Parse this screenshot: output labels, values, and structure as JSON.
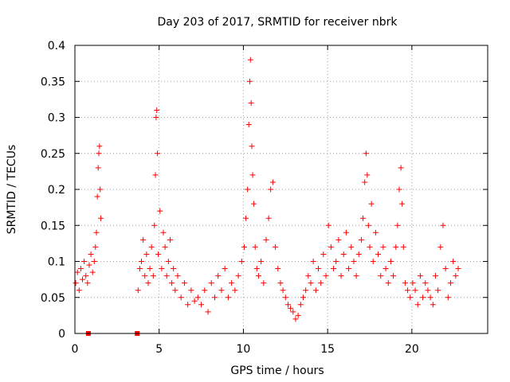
{
  "chart_data": {
    "type": "scatter",
    "title": "Day 203 of 2017, SRMTID for receiver nbrk",
    "xlabel": "GPS time / hours",
    "ylabel": "SRMTID / TECUs",
    "xlim": [
      0,
      24.5
    ],
    "ylim": [
      0,
      0.4
    ],
    "xticks": [
      0,
      5,
      10,
      15,
      20
    ],
    "xtick_labels": [
      "0",
      "5",
      "10",
      "15",
      "20"
    ],
    "yticks": [
      0,
      0.05,
      0.1,
      0.15,
      0.2,
      0.25,
      0.3,
      0.35,
      0.4
    ],
    "ytick_labels": [
      "0",
      "0.05",
      "0.1",
      "0.15",
      "0.2",
      "0.25",
      "0.3",
      "0.35",
      "0.4"
    ],
    "grid": true,
    "marker": "plus",
    "color": "#ff0000",
    "series": [
      {
        "name": "SRMTID",
        "x": [
          0.05,
          0.15,
          0.25,
          0.35,
          0.45,
          0.55,
          0.65,
          0.75,
          0.85,
          0.95,
          1.05,
          1.15,
          1.22,
          1.28,
          1.33,
          1.38,
          1.42,
          1.46,
          1.5,
          1.54,
          3.75,
          3.85,
          3.95,
          4.05,
          4.15,
          4.25,
          4.35,
          4.45,
          4.55,
          4.65,
          4.72,
          4.78,
          4.82,
          4.86,
          4.9,
          4.95,
          5.05,
          5.15,
          5.25,
          5.35,
          5.45,
          5.55,
          5.65,
          5.75,
          5.85,
          5.95,
          6.1,
          6.3,
          6.5,
          6.7,
          6.9,
          7.1,
          7.3,
          7.5,
          7.7,
          7.9,
          8.1,
          8.3,
          8.5,
          8.7,
          8.9,
          9.1,
          9.3,
          9.5,
          9.7,
          9.9,
          10.05,
          10.15,
          10.25,
          10.32,
          10.38,
          10.42,
          10.46,
          10.5,
          10.55,
          10.62,
          10.7,
          10.8,
          10.9,
          11.05,
          11.2,
          11.35,
          11.5,
          11.62,
          11.75,
          11.9,
          12.05,
          12.2,
          12.35,
          12.5,
          12.65,
          12.8,
          12.95,
          13.1,
          13.25,
          13.4,
          13.55,
          13.7,
          13.85,
          14.0,
          14.15,
          14.3,
          14.45,
          14.6,
          14.75,
          14.9,
          15.05,
          15.2,
          15.35,
          15.5,
          15.65,
          15.8,
          15.95,
          16.1,
          16.25,
          16.4,
          16.55,
          16.7,
          16.85,
          17.0,
          17.1,
          17.2,
          17.28,
          17.35,
          17.42,
          17.5,
          17.6,
          17.7,
          17.85,
          18.0,
          18.15,
          18.3,
          18.45,
          18.6,
          18.75,
          18.9,
          19.05,
          19.15,
          19.25,
          19.35,
          19.42,
          19.5,
          19.6,
          19.75,
          19.9,
          20.05,
          20.2,
          20.35,
          20.5,
          20.65,
          20.8,
          20.95,
          21.1,
          21.25,
          21.4,
          21.55,
          21.7,
          21.85,
          22.0,
          22.15,
          22.3,
          22.45,
          22.6,
          22.75
        ],
        "y": [
          0.07,
          0.085,
          0.06,
          0.09,
          0.075,
          0.1,
          0.08,
          0.07,
          0.095,
          0.11,
          0.085,
          0.1,
          0.12,
          0.14,
          0.19,
          0.23,
          0.25,
          0.26,
          0.2,
          0.16,
          0.06,
          0.09,
          0.1,
          0.13,
          0.08,
          0.11,
          0.07,
          0.09,
          0.12,
          0.08,
          0.15,
          0.22,
          0.3,
          0.31,
          0.25,
          0.11,
          0.17,
          0.09,
          0.14,
          0.12,
          0.08,
          0.1,
          0.13,
          0.07,
          0.09,
          0.06,
          0.08,
          0.05,
          0.07,
          0.04,
          0.06,
          0.045,
          0.05,
          0.04,
          0.06,
          0.03,
          0.07,
          0.05,
          0.08,
          0.06,
          0.09,
          0.05,
          0.07,
          0.06,
          0.08,
          0.1,
          0.12,
          0.16,
          0.2,
          0.29,
          0.35,
          0.38,
          0.32,
          0.26,
          0.22,
          0.18,
          0.12,
          0.09,
          0.08,
          0.1,
          0.07,
          0.13,
          0.16,
          0.2,
          0.21,
          0.12,
          0.09,
          0.07,
          0.06,
          0.05,
          0.04,
          0.035,
          0.03,
          0.02,
          0.025,
          0.04,
          0.05,
          0.06,
          0.08,
          0.07,
          0.1,
          0.06,
          0.09,
          0.07,
          0.11,
          0.08,
          0.15,
          0.12,
          0.09,
          0.1,
          0.13,
          0.08,
          0.11,
          0.14,
          0.09,
          0.12,
          0.1,
          0.08,
          0.11,
          0.13,
          0.16,
          0.21,
          0.25,
          0.22,
          0.15,
          0.12,
          0.18,
          0.1,
          0.14,
          0.11,
          0.08,
          0.12,
          0.09,
          0.07,
          0.1,
          0.08,
          0.12,
          0.15,
          0.2,
          0.23,
          0.18,
          0.12,
          0.07,
          0.06,
          0.05,
          0.07,
          0.06,
          0.04,
          0.08,
          0.05,
          0.07,
          0.06,
          0.05,
          0.04,
          0.08,
          0.06,
          0.12,
          0.15,
          0.09,
          0.05,
          0.07,
          0.1,
          0.08,
          0.09
        ]
      }
    ],
    "gap_markers_x": [
      0.8,
      3.7
    ]
  }
}
